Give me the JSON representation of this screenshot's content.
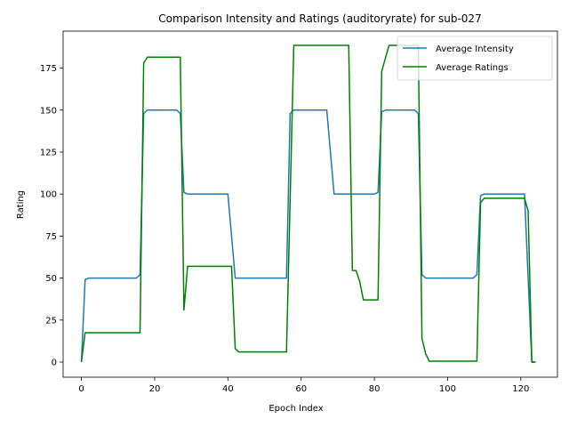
{
  "chart_data": {
    "type": "line",
    "title": "Comparison Intensity and Ratings (auditoryrate) for sub-027",
    "xlabel": "Epoch Index",
    "ylabel": "Rating",
    "xlim": [
      -5,
      130
    ],
    "ylim": [
      -9,
      197
    ],
    "xticks": [
      0,
      20,
      40,
      60,
      80,
      100,
      120
    ],
    "yticks": [
      0,
      25,
      50,
      75,
      100,
      125,
      150,
      175
    ],
    "grid": false,
    "legend_position": "top-right",
    "series": [
      {
        "name": "Average Intensity",
        "color": "#1f77b4",
        "points": [
          [
            0,
            0
          ],
          [
            1,
            49
          ],
          [
            2,
            50
          ],
          [
            15,
            50
          ],
          [
            16,
            52
          ],
          [
            17,
            148
          ],
          [
            18,
            150
          ],
          [
            26,
            150
          ],
          [
            27,
            148
          ],
          [
            28,
            101
          ],
          [
            29,
            100
          ],
          [
            40,
            100
          ],
          [
            42,
            50
          ],
          [
            56,
            50
          ],
          [
            57,
            148
          ],
          [
            58,
            150
          ],
          [
            67,
            150
          ],
          [
            69,
            100
          ],
          [
            80,
            100
          ],
          [
            81,
            101
          ],
          [
            82,
            149
          ],
          [
            83,
            150
          ],
          [
            91,
            150
          ],
          [
            92,
            148
          ],
          [
            93,
            52
          ],
          [
            94,
            50
          ],
          [
            107,
            50
          ],
          [
            108,
            52
          ],
          [
            109,
            99
          ],
          [
            110,
            100
          ],
          [
            121,
            100
          ],
          [
            123,
            0
          ],
          [
            124,
            0
          ]
        ]
      },
      {
        "name": "Average Ratings",
        "color": "#008000",
        "points": [
          [
            0,
            0
          ],
          [
            1,
            17.5
          ],
          [
            16,
            17.5
          ],
          [
            17,
            178
          ],
          [
            18,
            181.5
          ],
          [
            27,
            181.5
          ],
          [
            28,
            31
          ],
          [
            29,
            57
          ],
          [
            41,
            57
          ],
          [
            42,
            8
          ],
          [
            43,
            6
          ],
          [
            56,
            6
          ],
          [
            58,
            188.5
          ],
          [
            73,
            188.5
          ],
          [
            74,
            54.5
          ],
          [
            75,
            54.5
          ],
          [
            76,
            48
          ],
          [
            77,
            37
          ],
          [
            81,
            37
          ],
          [
            82,
            173
          ],
          [
            84,
            188.5
          ],
          [
            92,
            188.5
          ],
          [
            93,
            14
          ],
          [
            94,
            5
          ],
          [
            95,
            0.5
          ],
          [
            108,
            0.5
          ],
          [
            109,
            95
          ],
          [
            110,
            97.5
          ],
          [
            121,
            97.5
          ],
          [
            122,
            90
          ],
          [
            123,
            0
          ],
          [
            124,
            0
          ]
        ]
      }
    ]
  }
}
